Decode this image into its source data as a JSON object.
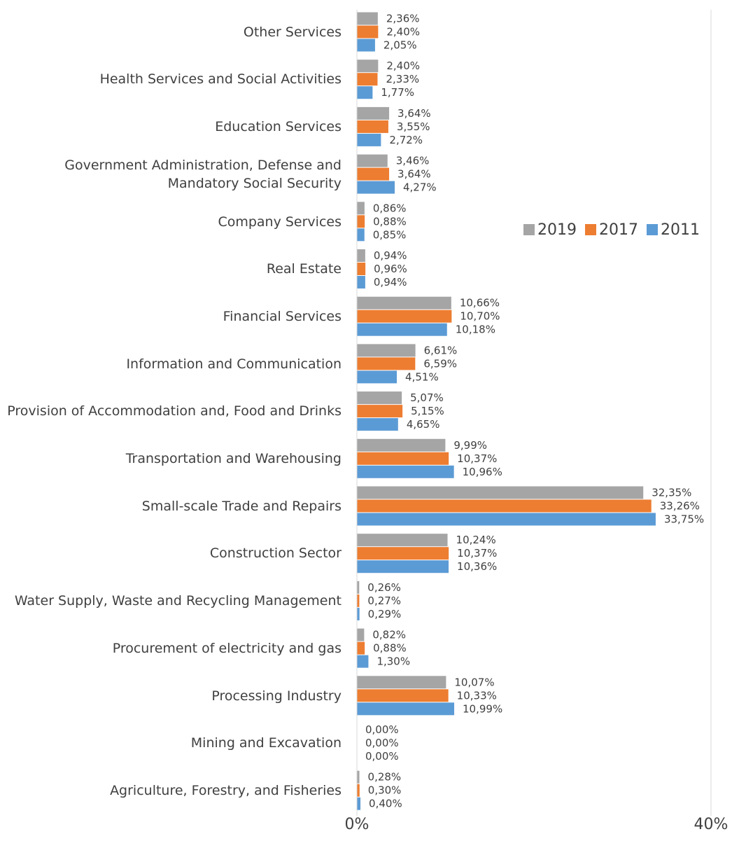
{
  "chart_data": {
    "type": "hbar",
    "categories": [
      "Other Services",
      "Health Services and Social Activities",
      "Education Services",
      "Government Administration, Defense and Mandatory Social Security",
      "Company Services",
      "Real Estate",
      "Financial Services",
      "Information and Communication",
      "Provision of Accommodation and, Food and Drinks",
      "Transportation and Warehousing",
      "Small-scale Trade and Repairs",
      "Construction Sector",
      "Water Supply, Waste and Recycling Management",
      "Procurement of electricity and gas",
      "Processing Industry",
      "Mining and Excavation",
      "Agriculture, Forestry, and Fisheries"
    ],
    "series": [
      {
        "name": "2019",
        "color": "#a5a5a5",
        "values": [
          2.36,
          2.4,
          3.64,
          3.46,
          0.86,
          0.94,
          10.66,
          6.61,
          5.07,
          9.99,
          32.35,
          10.24,
          0.26,
          0.82,
          10.07,
          0.0,
          0.28
        ],
        "value_labels": [
          "2,36%",
          "2,40%",
          "3,64%",
          "3,46%",
          "0,86%",
          "0,94%",
          "10,66%",
          "6,61%",
          "5,07%",
          "9,99%",
          "32,35%",
          "10,24%",
          "0,26%",
          "0,82%",
          "10,07%",
          "0,00%",
          "0,28%"
        ]
      },
      {
        "name": "2017",
        "color": "#ed7d31",
        "values": [
          2.4,
          2.33,
          3.55,
          3.64,
          0.88,
          0.96,
          10.7,
          6.59,
          5.15,
          10.37,
          33.26,
          10.37,
          0.27,
          0.88,
          10.33,
          0.0,
          0.3
        ],
        "value_labels": [
          "2,40%",
          "2,33%",
          "3,55%",
          "3,64%",
          "0,88%",
          "0,96%",
          "10,70%",
          "6,59%",
          "5,15%",
          "10,37%",
          "33,26%",
          "10,37%",
          "0,27%",
          "0,88%",
          "10,33%",
          "0,00%",
          "0,30%"
        ]
      },
      {
        "name": "2011",
        "color": "#5b9bd5",
        "values": [
          2.05,
          1.77,
          2.72,
          4.27,
          0.85,
          0.94,
          10.18,
          4.51,
          4.65,
          10.96,
          33.75,
          10.36,
          0.29,
          1.3,
          10.99,
          0.0,
          0.4
        ],
        "value_labels": [
          "2,05%",
          "1,77%",
          "2,72%",
          "4,27%",
          "0,85%",
          "0,94%",
          "10,18%",
          "4,51%",
          "4,65%",
          "10,96%",
          "33,75%",
          "10,36%",
          "0,29%",
          "1,30%",
          "10,99%",
          "0,00%",
          "0,40%"
        ]
      }
    ],
    "xlim": [
      0,
      40
    ],
    "xticks": [
      {
        "value": 0,
        "label": "0%"
      },
      {
        "value": 40,
        "label": "40%"
      }
    ],
    "grid": true,
    "legend": "right"
  }
}
